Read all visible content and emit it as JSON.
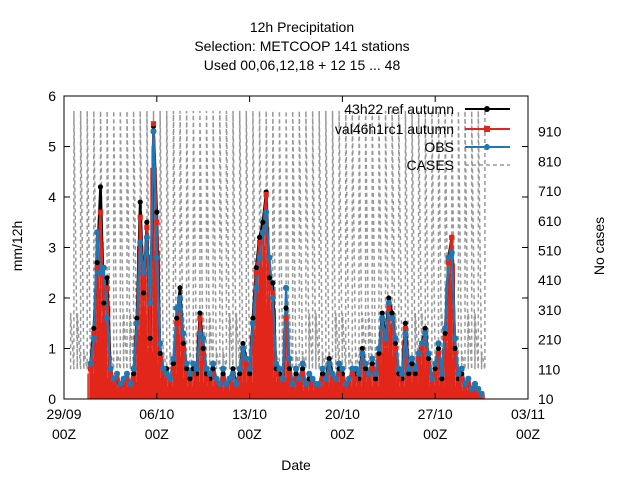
{
  "chart_data": {
    "type": "line",
    "title_lines": [
      "12h Precipitation",
      "Selection: METCOOP    141 stations",
      "Used  00,06,12,18  + 12 15 ... 48"
    ],
    "xlabel": "Date",
    "ylabel": "mm/12h",
    "y2label": "No cases",
    "x_range": [
      "2015-09-29 00Z",
      "2015-11-03 00Z"
    ],
    "xticks": [
      {
        "date": "2015-09-29",
        "label": [
          "29/09",
          "00Z"
        ]
      },
      {
        "date": "2015-10-06",
        "label": [
          "06/10",
          "00Z"
        ]
      },
      {
        "date": "2015-10-13",
        "label": [
          "13/10",
          "00Z"
        ]
      },
      {
        "date": "2015-10-20",
        "label": [
          "20/10",
          "00Z"
        ]
      },
      {
        "date": "2015-10-27",
        "label": [
          "27/10",
          "00Z"
        ]
      },
      {
        "date": "2015-11-03",
        "label": [
          "03/11",
          "00Z"
        ]
      }
    ],
    "ylim": [
      0,
      6
    ],
    "yticks": [
      0,
      1,
      2,
      3,
      4,
      5,
      6
    ],
    "y2lim": [
      10,
      1030
    ],
    "y2ticks": [
      10,
      110,
      210,
      310,
      410,
      510,
      610,
      710,
      810,
      910
    ],
    "grid": false,
    "legend_position": "top-right",
    "x_days": [
      2.0,
      2.25,
      2.5,
      2.75,
      3.0,
      3.25,
      3.5,
      3.75,
      4.0,
      4.25,
      4.5,
      4.75,
      5.0,
      5.25,
      5.5,
      5.75,
      6.0,
      6.25,
      6.5,
      6.75,
      7.0,
      7.25,
      7.5,
      7.75,
      8.0,
      8.25,
      8.5,
      8.75,
      9.0,
      9.25,
      9.5,
      9.75,
      10.0,
      10.25,
      10.5,
      10.75,
      11.0,
      11.25,
      11.5,
      11.75,
      12.0,
      12.25,
      12.5,
      12.75,
      13.0,
      13.25,
      13.5,
      13.75,
      14.0,
      14.25,
      14.5,
      14.75,
      15.0,
      15.25,
      15.5,
      15.75,
      16.0,
      16.25,
      16.5,
      16.75,
      17.0,
      17.25,
      17.5,
      17.75,
      18.0,
      18.25,
      18.5,
      18.75,
      19.0,
      19.25,
      19.5,
      19.75,
      20.0,
      20.25,
      20.5,
      20.75,
      21.0,
      21.25,
      21.5,
      21.75,
      22.0,
      22.25,
      22.5,
      22.75,
      23.0,
      23.25,
      23.5,
      23.75,
      24.0,
      24.25,
      24.5,
      24.75,
      25.0,
      25.25,
      25.5,
      25.75,
      26.0,
      26.25,
      26.5,
      26.75,
      27.0,
      27.25,
      27.5,
      27.75,
      28.0,
      28.25,
      28.5,
      28.75,
      29.0,
      29.25,
      29.5,
      29.75,
      30.0,
      30.25,
      30.5,
      30.75,
      31.0,
      31.25,
      31.5
    ],
    "series": [
      {
        "name": "43h22 ref autumn",
        "axis": "y",
        "color": "#000000",
        "values": [
          0.7,
          1.4,
          2.7,
          4.2,
          1.9,
          2.4,
          0.6,
          0.3,
          0.4,
          0.2,
          0.3,
          0.5,
          0.2,
          0.5,
          1.6,
          3.9,
          2.1,
          3.5,
          1.2,
          5.4,
          3.7,
          0.9,
          0.5,
          0.6,
          0.3,
          0.7,
          1.6,
          2.2,
          1.1,
          0.6,
          0.4,
          0.6,
          0.5,
          1.7,
          1.0,
          0.5,
          0.4,
          0.6,
          0.3,
          0.2,
          0.5,
          0.2,
          0.4,
          0.6,
          0.3,
          0.5,
          1.1,
          0.8,
          0.5,
          1.6,
          2.6,
          3.2,
          3.5,
          4.1,
          2.4,
          2.3,
          0.6,
          0.5,
          0.3,
          1.8,
          0.6,
          0.2,
          0.5,
          0.3,
          0.6,
          0.2,
          0.4,
          0.3,
          0.3,
          0.2,
          0.5,
          0.4,
          0.8,
          0.5,
          0.3,
          0.6,
          0.5,
          0.2,
          0.3,
          0.6,
          0.5,
          0.4,
          1.0,
          0.6,
          0.5,
          0.7,
          0.4,
          0.9,
          1.7,
          1.2,
          2.0,
          1.7,
          1.1,
          0.5,
          0.4,
          1.5,
          0.5,
          0.7,
          0.5,
          0.9,
          1.1,
          1.4,
          0.8,
          0.3,
          0.6,
          1.0,
          0.4,
          1.3,
          2.8,
          3.2,
          1.0,
          0.4,
          0.5,
          0.2,
          0.3,
          0.2,
          0.3,
          0.1,
          0.1
        ]
      },
      {
        "name": "val46h1rc1 autumn",
        "axis": "y",
        "color": "#e3261b",
        "values": [
          0.6,
          1.3,
          2.6,
          3.7,
          1.8,
          2.2,
          0.5,
          0.3,
          0.4,
          0.2,
          0.3,
          0.4,
          0.2,
          0.4,
          1.5,
          3.6,
          2.0,
          3.4,
          1.1,
          5.45,
          3.5,
          0.8,
          0.5,
          0.5,
          0.3,
          0.6,
          1.5,
          2.0,
          1.0,
          0.5,
          0.3,
          0.5,
          0.4,
          1.6,
          0.9,
          0.4,
          0.3,
          0.5,
          0.3,
          0.2,
          0.4,
          0.2,
          0.4,
          0.5,
          0.3,
          0.4,
          1.0,
          0.7,
          0.4,
          1.5,
          2.5,
          3.1,
          3.3,
          4.05,
          2.2,
          2.1,
          0.5,
          0.4,
          0.3,
          1.6,
          0.5,
          0.2,
          0.4,
          0.3,
          0.5,
          0.2,
          0.3,
          0.3,
          0.2,
          0.2,
          0.4,
          0.3,
          0.7,
          0.4,
          0.3,
          0.5,
          0.4,
          0.2,
          0.3,
          0.5,
          0.4,
          0.3,
          0.9,
          0.5,
          0.4,
          0.6,
          0.3,
          0.8,
          1.6,
          1.1,
          1.8,
          1.6,
          1.0,
          0.4,
          0.3,
          1.4,
          0.4,
          0.6,
          0.4,
          0.8,
          1.0,
          1.3,
          0.7,
          0.3,
          0.5,
          0.9,
          0.3,
          1.2,
          2.7,
          3.2,
          0.9,
          0.3,
          0.4,
          0.2,
          0.3,
          0.2,
          0.2,
          0.1,
          0.1
        ]
      },
      {
        "name": "OBS",
        "axis": "y",
        "color": "#1f77b4",
        "values": [
          0.7,
          1.2,
          3.3,
          2.5,
          2.6,
          1.6,
          0.6,
          0.4,
          0.5,
          0.3,
          0.4,
          0.5,
          0.3,
          0.6,
          1.5,
          3.1,
          2.5,
          3.2,
          1.9,
          5.3,
          2.8,
          1.1,
          0.6,
          0.5,
          0.4,
          0.8,
          1.8,
          2.0,
          1.3,
          0.7,
          0.5,
          0.7,
          0.6,
          1.3,
          1.2,
          0.6,
          0.5,
          0.7,
          0.4,
          0.3,
          0.6,
          0.3,
          0.4,
          0.5,
          0.3,
          0.6,
          1.0,
          0.8,
          0.6,
          1.5,
          2.2,
          2.8,
          3.3,
          3.7,
          2.8,
          2.0,
          0.7,
          0.6,
          0.4,
          2.2,
          0.8,
          0.3,
          0.6,
          0.4,
          0.7,
          0.3,
          0.5,
          0.4,
          0.3,
          0.3,
          0.6,
          0.4,
          0.7,
          0.5,
          0.4,
          0.7,
          0.6,
          0.3,
          0.4,
          0.6,
          0.6,
          0.5,
          0.9,
          0.7,
          0.5,
          0.8,
          0.5,
          1.0,
          1.6,
          1.2,
          1.9,
          1.6,
          1.2,
          0.6,
          0.5,
          1.3,
          0.6,
          0.8,
          0.6,
          0.9,
          1.1,
          1.3,
          0.9,
          0.4,
          0.7,
          1.1,
          0.5,
          1.4,
          2.8,
          2.9,
          1.2,
          0.5,
          0.6,
          0.3,
          0.4,
          0.2,
          0.3,
          0.2,
          0.1
        ]
      },
      {
        "name": "CASES",
        "axis": "y2",
        "color": "#999999",
        "dashed": true,
        "low": 110,
        "high_pattern": [
          300,
          980,
          300,
          980,
          170,
          980,
          170,
          980
        ],
        "notes": "case counts alternate sharply between ~100-300 and ~800-990 across the period"
      }
    ]
  }
}
